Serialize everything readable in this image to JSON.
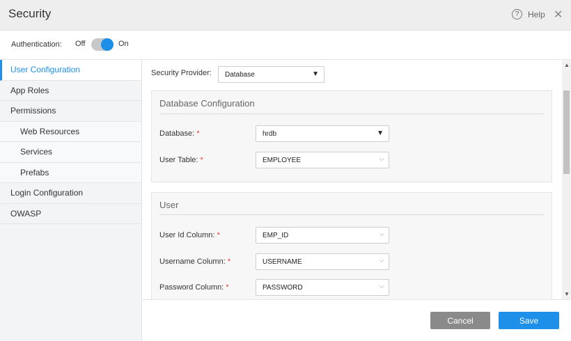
{
  "header": {
    "title": "Security",
    "help_label": "Help",
    "help_icon": "question-circle-icon",
    "close_icon": "close-icon"
  },
  "auth": {
    "label": "Authentication:",
    "off": "Off",
    "on": "On",
    "enabled": true
  },
  "sidebar": {
    "items": [
      {
        "label": "User Configuration",
        "active": true
      },
      {
        "label": "App Roles"
      },
      {
        "label": "Permissions"
      },
      {
        "label": "Web Resources",
        "sub": true
      },
      {
        "label": "Services",
        "sub": true
      },
      {
        "label": "Prefabs",
        "sub": true
      },
      {
        "label": "Login Configuration"
      },
      {
        "label": "OWASP"
      }
    ]
  },
  "main": {
    "provider_label": "Security Provider:",
    "provider_value": "Database",
    "db_panel": {
      "title": "Database Configuration",
      "database_label": "Database:",
      "database_value": "hrdb",
      "table_label": "User Table:",
      "table_value": "EMPLOYEE"
    },
    "user_panel": {
      "title": "User",
      "userid_label": "User Id Column:",
      "userid_value": "EMP_ID",
      "username_label": "Username Column:",
      "username_value": "USERNAME",
      "password_label": "Password Column:",
      "password_value": "PASSWORD"
    },
    "required_mark": "*"
  },
  "footer": {
    "cancel": "Cancel",
    "save": "Save"
  },
  "colors": {
    "accent": "#1e90ea",
    "cancel": "#8a8a8a",
    "required": "#e53935"
  }
}
